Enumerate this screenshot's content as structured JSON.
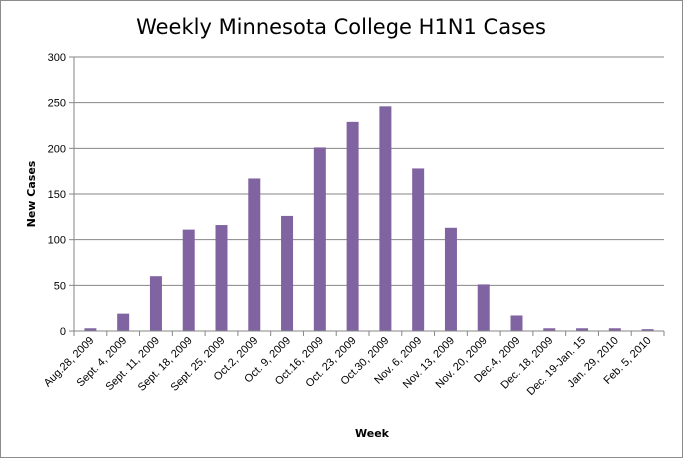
{
  "chart_data": {
    "type": "bar",
    "title": "Weekly Minnesota College H1N1 Cases",
    "xlabel": "Week",
    "ylabel": "New Cases",
    "ylim": [
      0,
      300
    ],
    "yticks": [
      0,
      50,
      100,
      150,
      200,
      250,
      300
    ],
    "grid": true,
    "legend": "none",
    "bar_color": "#8064a2",
    "categories": [
      "Aug.28, 2009",
      "Sept. 4, 2009",
      "Sept. 11, 2009",
      "Sept. 18, 2009",
      "Sept. 25, 2009",
      "Oct.2, 2009",
      "Oct. 9, 2009",
      "Oct.16, 2009",
      "Oct. 23, 2009",
      "Oct.30, 2009",
      "Nov. 6, 2009",
      "Nov. 13, 2009",
      "Nov. 20, 2009",
      "Dec.4, 2009",
      "Dec. 18, 2009",
      "Dec. 19-Jan. 15",
      "Jan. 29, 2010",
      "Feb. 5, 2010"
    ],
    "values": [
      3,
      19,
      60,
      111,
      116,
      167,
      126,
      201,
      229,
      246,
      178,
      113,
      51,
      17,
      3,
      3,
      3,
      2
    ]
  }
}
